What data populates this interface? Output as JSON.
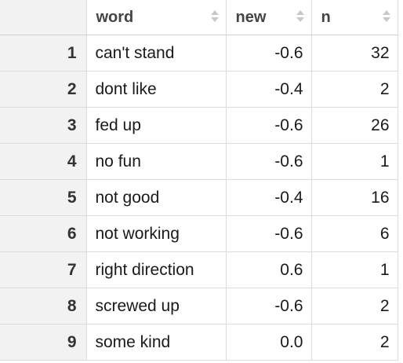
{
  "table": {
    "columns": [
      {
        "label": "word",
        "sortable": true,
        "icon": "sort-icon"
      },
      {
        "label": "new",
        "sortable": true,
        "icon": "sort-icon"
      },
      {
        "label": "n",
        "sortable": true,
        "icon": "sort-icon"
      }
    ],
    "rows": [
      {
        "index": "1",
        "word": "can't stand",
        "new": "-0.6",
        "n": "32"
      },
      {
        "index": "2",
        "word": "dont like",
        "new": "-0.4",
        "n": "2"
      },
      {
        "index": "3",
        "word": "fed up",
        "new": "-0.6",
        "n": "26"
      },
      {
        "index": "4",
        "word": "no fun",
        "new": "-0.6",
        "n": "1"
      },
      {
        "index": "5",
        "word": "not good",
        "new": "-0.4",
        "n": "16"
      },
      {
        "index": "6",
        "word": "not working",
        "new": "-0.6",
        "n": "6"
      },
      {
        "index": "7",
        "word": "right direction",
        "new": "0.6",
        "n": "1"
      },
      {
        "index": "8",
        "word": "screwed up",
        "new": "-0.6",
        "n": "2"
      },
      {
        "index": "9",
        "word": "some kind",
        "new": "0.0",
        "n": "2"
      }
    ]
  },
  "colors": {
    "index_background": "#f2f2f2",
    "border": "#dcdcdc",
    "header_text": "#444444",
    "sort_icon": "#c8c8c8"
  }
}
